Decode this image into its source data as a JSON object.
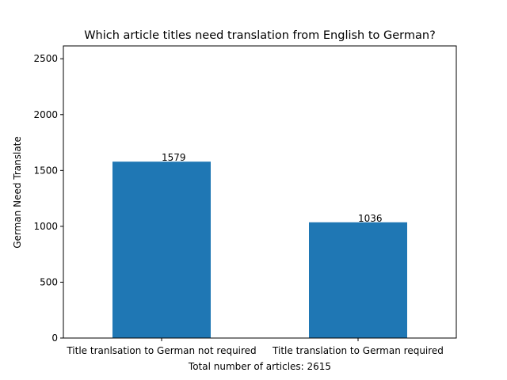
{
  "chart_data": {
    "type": "bar",
    "title": "Which article titles need translation from English to German?",
    "xlabel": "Total number of articles: 2615",
    "ylabel": "German Need Translate",
    "categories": [
      "Title tranlsation to German not required",
      "Title translation to German required"
    ],
    "values": [
      1579,
      1036
    ],
    "data_labels": [
      "1579",
      "1036"
    ],
    "ylim": [
      0,
      2615
    ],
    "yticks": [
      0,
      500,
      1000,
      1500,
      2000,
      2500
    ],
    "grid": false,
    "legend": "none",
    "bar_color": "#1f77b4"
  }
}
